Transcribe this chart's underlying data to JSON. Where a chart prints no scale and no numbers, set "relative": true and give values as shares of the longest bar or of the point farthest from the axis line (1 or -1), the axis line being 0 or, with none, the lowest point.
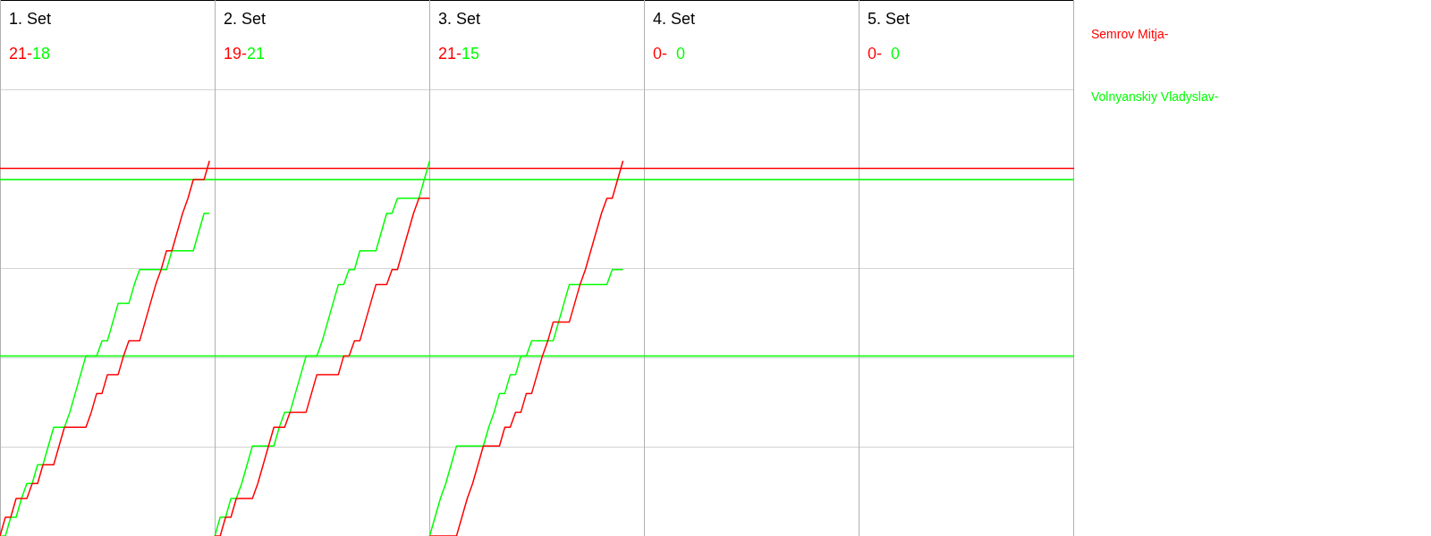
{
  "chart_data": {
    "type": "line",
    "legend": "right",
    "grid": "y",
    "relative": true,
    "annotations": [
      "1. Set",
      "21-",
      "18",
      "2. Set",
      "19-",
      "21",
      "3. Set",
      "21-",
      "15",
      "4. Set",
      "0-",
      "0",
      "5. Set",
      "0-",
      "0"
    ],
    "categories": [
      null,
      null,
      null,
      null,
      null,
      null,
      null,
      null,
      null,
      null,
      null,
      null,
      null,
      null,
      null,
      null,
      null,
      null,
      null,
      null,
      null,
      null,
      null,
      null,
      null,
      null,
      null,
      null,
      null,
      null,
      null,
      null,
      null,
      null,
      null,
      null,
      null,
      null,
      null,
      null,
      null,
      null,
      null,
      null,
      null,
      null,
      null,
      null,
      null,
      null,
      null,
      null,
      null,
      null,
      null,
      null,
      null,
      null,
      null,
      null,
      null,
      null,
      null,
      null,
      null,
      null,
      null,
      null,
      null,
      null,
      null,
      null,
      null,
      null,
      null,
      null,
      null,
      null,
      null,
      null,
      null,
      null,
      null,
      null,
      null,
      null,
      null,
      null,
      null,
      null,
      null,
      null,
      null,
      null,
      null,
      null,
      null,
      null,
      null,
      null,
      null,
      null,
      null,
      null,
      null,
      null,
      null,
      null,
      null,
      null,
      null,
      null,
      null,
      null,
      null,
      null,
      null,
      null,
      null,
      null,
      null,
      null,
      null,
      null,
      null,
      null,
      null,
      null,
      null,
      null,
      null,
      null,
      null,
      null,
      null,
      null,
      null,
      null,
      null,
      null,
      null,
      null,
      null,
      null,
      null,
      null,
      null,
      null,
      null,
      null,
      null,
      null,
      null,
      null,
      null,
      null,
      null,
      null,
      null,
      null,
      null,
      null,
      null,
      null,
      null,
      null,
      null,
      null,
      null,
      null,
      null,
      null,
      null,
      null,
      null,
      null,
      null,
      null,
      null,
      null,
      null,
      null,
      null,
      null,
      null,
      null,
      null,
      null,
      null,
      null,
      null,
      null,
      null,
      null,
      null,
      null,
      null,
      null,
      null,
      null,
      null
    ],
    "ref_lines": [
      {
        "axis": "y",
        "value": 0.98,
        "color": "#ff0000"
      },
      {
        "axis": "y",
        "value": 0.95,
        "color": "#00ff00"
      },
      {
        "axis": "y",
        "value": 0.48,
        "color": "#00ff00"
      }
    ],
    "series": [
      {
        "name": "Semrov Mitja-",
        "color": "#ff0000",
        "values": [
          0,
          0.05,
          0.05,
          0.1,
          0.1,
          0.1,
          0.14,
          0.14,
          0.19,
          0.19,
          0.19,
          0.24,
          0.29,
          0.29,
          0.29,
          0.29,
          0.29,
          0.33,
          0.38,
          0.38,
          0.43,
          0.43,
          0.43,
          0.48,
          0.52,
          0.52,
          0.52,
          0.57,
          0.62,
          0.67,
          0.71,
          0.76,
          0.76,
          0.81,
          0.86,
          0.9,
          0.95,
          0.95,
          0.95,
          1,
          null,
          null,
          null,
          null,
          null,
          null,
          null,
          null,
          null,
          null,
          null,
          null,
          null,
          null,
          null,
          null,
          null,
          null,
          null,
          null,
          null,
          null,
          null,
          null,
          null,
          null,
          null,
          null,
          null,
          null,
          null,
          null,
          null,
          null,
          null,
          null,
          null,
          null,
          null,
          null,
          null,
          null,
          null,
          null,
          null,
          null,
          null,
          null,
          null,
          null,
          null,
          null,
          null,
          null,
          null,
          null,
          null,
          null,
          null,
          null,
          null,
          null,
          null,
          null,
          null,
          null,
          null,
          null,
          null,
          null,
          null,
          null,
          null,
          null,
          null,
          null,
          null,
          null,
          null,
          null,
          null,
          null,
          null,
          null,
          null,
          null,
          null,
          null,
          null,
          null,
          null,
          null,
          null,
          null,
          null,
          null,
          null,
          null,
          null,
          null,
          null,
          null,
          null,
          null,
          null,
          null,
          null,
          null,
          null,
          null,
          null,
          null,
          null,
          null,
          null,
          null,
          null,
          null,
          null,
          null,
          null,
          null,
          null,
          null,
          null,
          null,
          null,
          null,
          null,
          null,
          null,
          null,
          null,
          null,
          null,
          null,
          null,
          null,
          null,
          null,
          null,
          null,
          null,
          null,
          null,
          null,
          null,
          null,
          null,
          null,
          null,
          null,
          null,
          null,
          null,
          null,
          null,
          null,
          null,
          null,
          null
        ]
      },
      {
        "name": "Volnyanskiy Vladyslav-",
        "color": "#00ff00",
        "values": [
          0,
          0,
          0.05,
          0.05,
          0.1,
          0.14,
          0.14,
          0.19,
          0.19,
          0.24,
          0.29,
          0.29,
          0.29,
          0.33,
          0.38,
          0.43,
          0.48,
          0.48,
          0.48,
          0.52,
          0.52,
          0.57,
          0.62,
          0.62,
          0.62,
          0.67,
          0.71,
          0.71,
          0.71,
          0.71,
          0.71,
          0.71,
          0.76,
          0.76,
          0.76,
          0.76,
          0.76,
          0.81,
          0.86,
          0.86,
          null,
          null,
          null,
          null,
          null,
          null,
          null,
          null,
          null,
          null,
          null,
          null,
          null,
          null,
          null,
          null,
          null,
          null,
          null,
          null,
          null,
          null,
          null,
          null,
          null,
          null,
          null,
          null,
          null,
          null,
          null,
          null,
          null,
          null,
          null,
          null,
          null,
          null,
          null,
          null,
          null,
          null,
          null,
          null,
          null,
          null,
          null,
          null,
          null,
          null,
          null,
          null,
          null,
          null,
          null,
          null,
          null,
          null,
          null,
          null,
          null,
          null,
          null,
          null,
          null,
          null,
          null,
          null,
          null,
          null,
          null,
          null,
          null,
          null,
          null,
          null,
          null,
          null,
          null,
          null,
          null,
          null,
          null,
          null,
          null,
          null,
          null,
          null,
          null,
          null,
          null,
          null,
          null,
          null,
          null,
          null,
          null,
          null,
          null,
          null,
          null,
          null,
          null,
          null,
          null,
          null,
          null,
          null,
          null,
          null,
          null,
          null,
          null,
          null,
          null,
          null,
          null,
          null,
          null,
          null,
          null,
          null,
          null,
          null,
          null,
          null,
          null,
          null,
          null,
          null,
          null,
          null,
          null,
          null,
          null,
          null,
          null,
          null,
          null,
          null,
          null,
          null,
          null,
          null,
          null,
          null,
          null,
          null,
          null,
          null,
          null,
          null,
          null,
          null,
          null,
          null,
          null,
          null,
          null,
          null,
          null
        ]
      },
      {
        "color": "#ff0000",
        "values": [
          null,
          null,
          null,
          null,
          null,
          null,
          null,
          null,
          null,
          null,
          null,
          null,
          null,
          null,
          null,
          null,
          null,
          null,
          null,
          null,
          null,
          null,
          null,
          null,
          null,
          null,
          null,
          null,
          null,
          null,
          null,
          null,
          null,
          null,
          null,
          null,
          null,
          null,
          null,
          null,
          0,
          0,
          0.05,
          0.05,
          0.1,
          0.1,
          0.1,
          0.1,
          0.14,
          0.19,
          0.24,
          0.29,
          0.29,
          0.29,
          0.33,
          0.33,
          0.33,
          0.33,
          0.38,
          0.43,
          0.43,
          0.43,
          0.43,
          0.43,
          0.48,
          0.48,
          0.52,
          0.52,
          0.57,
          0.62,
          0.67,
          0.67,
          0.67,
          0.71,
          0.71,
          0.76,
          0.81,
          0.86,
          0.9,
          0.9,
          0.9,
          null,
          null,
          null,
          null,
          null,
          null,
          null,
          null,
          null,
          null,
          null,
          null,
          null,
          null,
          null,
          null,
          null,
          null,
          null,
          null,
          null,
          null,
          null,
          null,
          null,
          null,
          null,
          null,
          null,
          null,
          null,
          null,
          null,
          null,
          null,
          null,
          null,
          null,
          null,
          null,
          null,
          null,
          null,
          null,
          null,
          null,
          null,
          null,
          null,
          null,
          null,
          null,
          null,
          null,
          null,
          null,
          null,
          null,
          null,
          null,
          null,
          null,
          null,
          null,
          null,
          null,
          null,
          null,
          null,
          null,
          null,
          null,
          null,
          null,
          null,
          null,
          null,
          null,
          null,
          null,
          null,
          null,
          null,
          null,
          null,
          null,
          null,
          null,
          null,
          null,
          null,
          null,
          null,
          null,
          null,
          null,
          null,
          null,
          null,
          null,
          null,
          null,
          null,
          null,
          null,
          null,
          null,
          null,
          null,
          null,
          null,
          null,
          null,
          null,
          null,
          null,
          null,
          null,
          null,
          null
        ]
      },
      {
        "color": "#00ff00",
        "values": [
          null,
          null,
          null,
          null,
          null,
          null,
          null,
          null,
          null,
          null,
          null,
          null,
          null,
          null,
          null,
          null,
          null,
          null,
          null,
          null,
          null,
          null,
          null,
          null,
          null,
          null,
          null,
          null,
          null,
          null,
          null,
          null,
          null,
          null,
          null,
          null,
          null,
          null,
          null,
          null,
          0,
          0.05,
          0.05,
          0.1,
          0.1,
          0.14,
          0.19,
          0.24,
          0.24,
          0.24,
          0.24,
          0.24,
          0.29,
          0.33,
          0.33,
          0.38,
          0.43,
          0.48,
          0.48,
          0.48,
          0.52,
          0.57,
          0.62,
          0.67,
          0.67,
          0.71,
          0.71,
          0.76,
          0.76,
          0.76,
          0.76,
          0.81,
          0.86,
          0.86,
          0.9,
          0.9,
          0.9,
          0.9,
          0.9,
          0.95,
          1,
          null,
          null,
          null,
          null,
          null,
          null,
          null,
          null,
          null,
          null,
          null,
          null,
          null,
          null,
          null,
          null,
          null,
          null,
          null,
          null,
          null,
          null,
          null,
          null,
          null,
          null,
          null,
          null,
          null,
          null,
          null,
          null,
          null,
          null,
          null,
          null,
          null,
          null,
          null,
          null,
          null,
          null,
          null,
          null,
          null,
          null,
          null,
          null,
          null,
          null,
          null,
          null,
          null,
          null,
          null,
          null,
          null,
          null,
          null,
          null,
          null,
          null,
          null,
          null,
          null,
          null,
          null,
          null,
          null,
          null,
          null,
          null,
          null,
          null,
          null,
          null,
          null,
          null,
          null,
          null,
          null,
          null,
          null,
          null,
          null,
          null,
          null,
          null,
          null,
          null,
          null,
          null,
          null,
          null,
          null,
          null,
          null,
          null,
          null,
          null,
          null,
          null,
          null,
          null,
          null,
          null,
          null,
          null,
          null,
          null,
          null,
          null,
          null,
          null,
          null,
          null,
          null,
          null,
          null,
          null
        ]
      },
      {
        "color": "#ff0000",
        "values": [
          null,
          null,
          null,
          null,
          null,
          null,
          null,
          null,
          null,
          null,
          null,
          null,
          null,
          null,
          null,
          null,
          null,
          null,
          null,
          null,
          null,
          null,
          null,
          null,
          null,
          null,
          null,
          null,
          null,
          null,
          null,
          null,
          null,
          null,
          null,
          null,
          null,
          null,
          null,
          null,
          null,
          null,
          null,
          null,
          null,
          null,
          null,
          null,
          null,
          null,
          null,
          null,
          null,
          null,
          null,
          null,
          null,
          null,
          null,
          null,
          null,
          null,
          null,
          null,
          null,
          null,
          null,
          null,
          null,
          null,
          null,
          null,
          null,
          null,
          null,
          null,
          null,
          null,
          null,
          null,
          0,
          0,
          0,
          0,
          0,
          0,
          0.05,
          0.1,
          0.14,
          0.19,
          0.24,
          0.24,
          0.24,
          0.24,
          0.29,
          0.29,
          0.33,
          0.33,
          0.38,
          0.38,
          0.43,
          0.48,
          0.52,
          0.57,
          0.57,
          0.57,
          0.57,
          0.62,
          0.67,
          0.71,
          0.76,
          0.81,
          0.86,
          0.9,
          0.9,
          0.95,
          1,
          null,
          null,
          null,
          null,
          null,
          null,
          null,
          null,
          null,
          null,
          null,
          null,
          null,
          null,
          null,
          null,
          null,
          null,
          null,
          null,
          null,
          null,
          null,
          null,
          null,
          null,
          null,
          null,
          null,
          null,
          null,
          null,
          null,
          null,
          null,
          null,
          null,
          null,
          null,
          null,
          null,
          null,
          null,
          null,
          null,
          null,
          null,
          null,
          null,
          null,
          null,
          null,
          null,
          null,
          null,
          null,
          null,
          null,
          null,
          null,
          null,
          null,
          null,
          null,
          null,
          null,
          null,
          null,
          null,
          null,
          null,
          null,
          null,
          null,
          null,
          null,
          null,
          null,
          null,
          null,
          null,
          null,
          null,
          null
        ]
      },
      {
        "color": "#00ff00",
        "values": [
          null,
          null,
          null,
          null,
          null,
          null,
          null,
          null,
          null,
          null,
          null,
          null,
          null,
          null,
          null,
          null,
          null,
          null,
          null,
          null,
          null,
          null,
          null,
          null,
          null,
          null,
          null,
          null,
          null,
          null,
          null,
          null,
          null,
          null,
          null,
          null,
          null,
          null,
          null,
          null,
          null,
          null,
          null,
          null,
          null,
          null,
          null,
          null,
          null,
          null,
          null,
          null,
          null,
          null,
          null,
          null,
          null,
          null,
          null,
          null,
          null,
          null,
          null,
          null,
          null,
          null,
          null,
          null,
          null,
          null,
          null,
          null,
          null,
          null,
          null,
          null,
          null,
          null,
          null,
          null,
          0,
          0.05,
          0.1,
          0.14,
          0.19,
          0.24,
          0.24,
          0.24,
          0.24,
          0.24,
          0.24,
          0.29,
          0.33,
          0.38,
          0.38,
          0.43,
          0.43,
          0.48,
          0.48,
          0.52,
          0.52,
          0.52,
          0.52,
          0.52,
          0.57,
          0.62,
          0.67,
          0.67,
          0.67,
          0.67,
          0.67,
          0.67,
          0.67,
          0.67,
          0.71,
          0.71,
          0.71,
          null,
          null,
          null,
          null,
          null,
          null,
          null,
          null,
          null,
          null,
          null,
          null,
          null,
          null,
          null,
          null,
          null,
          null,
          null,
          null,
          null,
          null,
          null,
          null,
          null,
          null,
          null,
          null,
          null,
          null,
          null,
          null,
          null,
          null,
          null,
          null,
          null,
          null,
          null,
          null,
          null,
          null,
          null,
          null,
          null,
          null,
          null,
          null,
          null,
          null,
          null,
          null,
          null,
          null,
          null,
          null,
          null,
          null,
          null,
          null,
          null,
          null,
          null,
          null,
          null,
          null,
          null,
          null,
          null,
          null,
          null,
          null,
          null,
          null,
          null,
          null,
          null,
          null,
          null,
          null,
          null,
          null,
          null,
          null
        ]
      }
    ]
  }
}
